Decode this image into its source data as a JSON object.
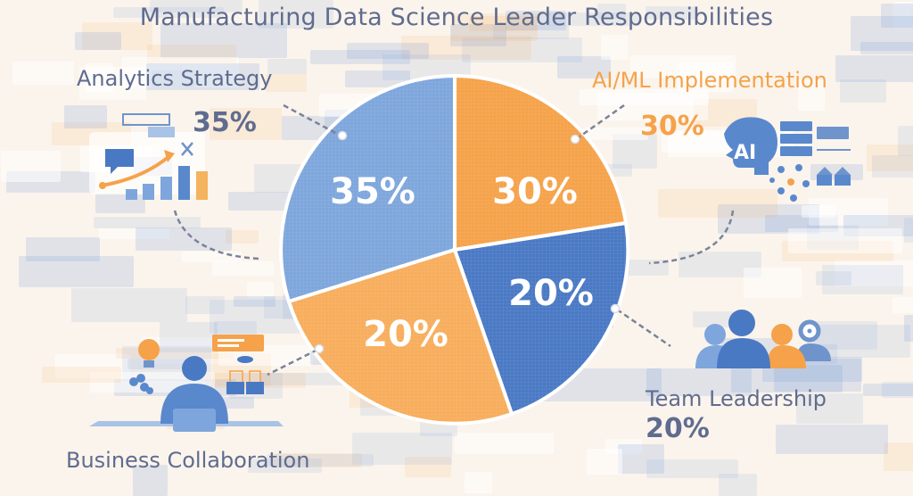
{
  "title": "Manufacturing Data Science Leader Responsibilities",
  "colors": {
    "light_blue": "#7ea6dc",
    "dark_blue": "#4a79c4",
    "orange": "#f5a24a",
    "light_orange": "#f7ad5c",
    "text_gray": "#5f6c8f",
    "background": "#fbf4ec"
  },
  "labels": {
    "analytics": {
      "name": "Analytics Strategy",
      "pct": "35%"
    },
    "aiml": {
      "name": "AI/ML Implementation",
      "pct": "30%"
    },
    "team": {
      "name": "Team Leadership",
      "pct": "20%"
    },
    "business": {
      "name": "Business Collaboration"
    }
  },
  "icons": {
    "analytics": "analytics-chart-icon",
    "aiml": "ai-head-network-icon",
    "team": "team-people-icon",
    "business": "person-at-desk-icon"
  },
  "chart_data": {
    "type": "pie",
    "title": "Manufacturing Data Science Leader Responsibilities",
    "categories": [
      "Analytics Strategy",
      "AI/ML Implementation",
      "Team Leadership",
      "Business Collaboration"
    ],
    "values": [
      35,
      30,
      20,
      20
    ],
    "value_labels": [
      "35%",
      "30%",
      "20%",
      "20%"
    ],
    "colors": [
      "#7ea6dc",
      "#f5a24a",
      "#4a79c4",
      "#f7ad5c"
    ],
    "legend": "callout labels around pie with dashed leader lines"
  }
}
